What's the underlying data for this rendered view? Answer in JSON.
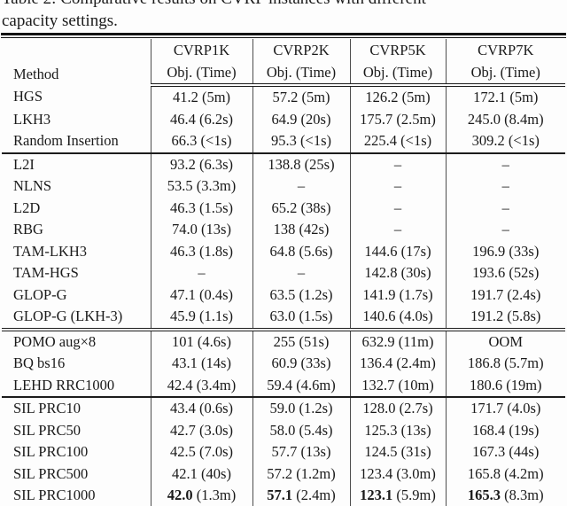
{
  "colors": {
    "background": "#fdfdfd",
    "text": "#1a1a1a",
    "rule": "#121212",
    "vertical_line": "#4d4d4d"
  },
  "caption": {
    "line1_clipped": "Table 2: Comparative results on CVRP instances with different",
    "line2": "capacity settings."
  },
  "table": {
    "method_header": "Method",
    "subheader": "Obj. (Time)",
    "columns": [
      "CVRP1K",
      "CVRP2K",
      "CVRP5K",
      "CVRP7K"
    ],
    "empty_cell": "–",
    "groups": [
      {
        "name": "classical-solvers",
        "separator": "none",
        "rows": [
          {
            "method": "HGS",
            "cells": [
              "41.2 (5m)",
              "57.2 (5m)",
              "126.2 (5m)",
              "172.1 (5m)"
            ]
          },
          {
            "method": "LKH3",
            "cells": [
              "46.4 (6.2s)",
              "64.9 (20s)",
              "175.7 (2.5m)",
              "245.0 (8.4m)"
            ]
          },
          {
            "method": "Random Insertion",
            "cells": [
              "66.3 (<1s)",
              "95.3 (<1s)",
              "225.4 (<1s)",
              "309.2 (<1s)"
            ]
          }
        ]
      },
      {
        "name": "learning-improvement-methods",
        "separator": "solid",
        "rows": [
          {
            "method": "L2I",
            "cells": [
              "93.2 (6.3s)",
              "138.8 (25s)",
              "–",
              "–"
            ]
          },
          {
            "method": "NLNS",
            "cells": [
              "53.5 (3.3m)",
              "–",
              "–",
              "–"
            ]
          },
          {
            "method": "L2D",
            "cells": [
              "46.3 (1.5s)",
              "65.2 (38s)",
              "–",
              "–"
            ]
          },
          {
            "method": "RBG",
            "cells": [
              "74.0 (13s)",
              "138 (42s)",
              "–",
              "–"
            ]
          },
          {
            "method": "TAM-LKH3",
            "cells": [
              "46.3 (1.8s)",
              "64.8 (5.6s)",
              "144.6 (17s)",
              "196.9 (33s)"
            ]
          },
          {
            "method": "TAM-HGS",
            "cells": [
              "–",
              "–",
              "142.8 (30s)",
              "193.6 (52s)"
            ]
          },
          {
            "method": "GLOP-G",
            "cells": [
              "47.1 (0.4s)",
              "63.5 (1.2s)",
              "141.9 (1.7s)",
              "191.7 (2.4s)"
            ]
          },
          {
            "method": "GLOP-G (LKH-3)",
            "cells": [
              "45.9 (1.1s)",
              "63.0 (1.5s)",
              "140.6 (4.0s)",
              "191.2 (5.8s)"
            ]
          }
        ]
      },
      {
        "name": "constructive-nco-methods",
        "separator": "double",
        "rows": [
          {
            "method": "POMO aug×8",
            "cells": [
              "101 (4.6s)",
              "255 (51s)",
              "632.9 (11m)",
              "OOM"
            ]
          },
          {
            "method": "BQ bs16",
            "cells": [
              "43.1 (14s)",
              "60.9 (33s)",
              "136.4 (2.4m)",
              "186.8 (5.7m)"
            ]
          },
          {
            "method": "LEHD RRC1000",
            "cells": [
              "42.4 (3.4m)",
              "59.4 (4.6m)",
              "132.7 (10m)",
              "180.6 (19m)"
            ]
          }
        ]
      },
      {
        "name": "sil-ours",
        "separator": "solid",
        "rows": [
          {
            "method": "SIL PRC10",
            "cells": [
              "43.4 (0.6s)",
              "59.0 (1.2s)",
              "128.0 (2.7s)",
              "171.7 (4.0s)"
            ]
          },
          {
            "method": "SIL PRC50",
            "cells": [
              "42.7 (3.0s)",
              "58.0 (5.4s)",
              "125.3 (13s)",
              "168.4 (19s)"
            ]
          },
          {
            "method": "SIL PRC100",
            "cells": [
              "42.5 (7.0s)",
              "57.7 (13s)",
              "124.5 (31s)",
              "167.3 (44s)"
            ]
          },
          {
            "method": "SIL PRC500",
            "cells": [
              "42.1 (40s)",
              "57.2 (1.2m)",
              "123.4 (3.0m)",
              "165.8 (4.2m)"
            ]
          },
          {
            "method": "SIL PRC1000",
            "cells": [
              {
                "bold": "42.0",
                "rest": " (1.3m)"
              },
              {
                "bold": "57.1",
                "rest": " (2.4m)"
              },
              {
                "bold": "123.1",
                "rest": " (5.9m)"
              },
              {
                "bold": "165.3",
                "rest": " (8.3m)"
              }
            ]
          }
        ]
      }
    ]
  }
}
